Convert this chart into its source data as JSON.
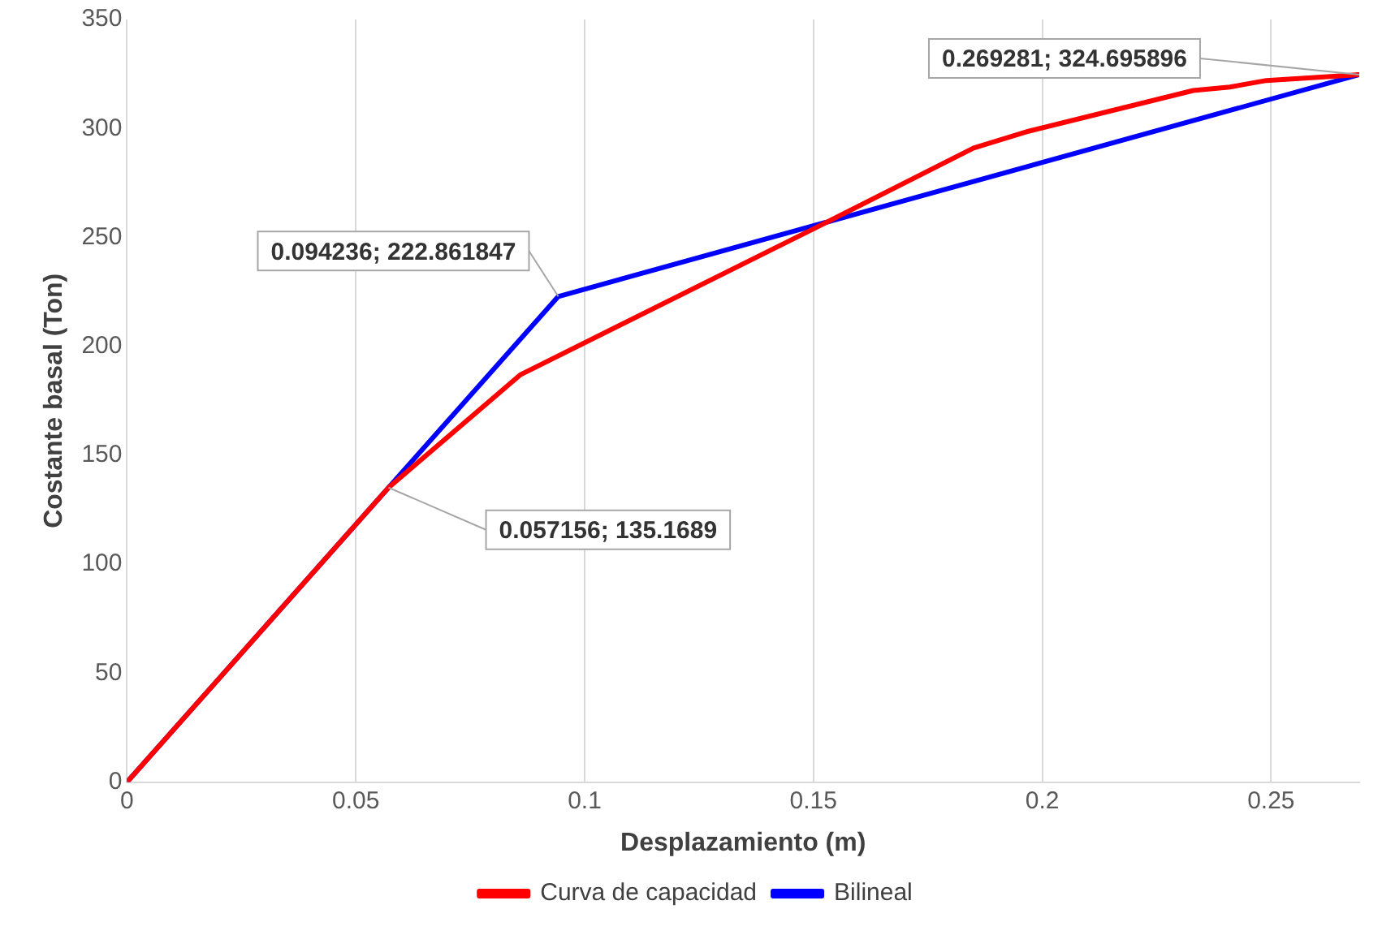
{
  "chart_data": {
    "type": "line",
    "xlabel": "Desplazamiento (m)",
    "ylabel": "Costante basal (Ton)",
    "xlim": [
      0,
      0.269281
    ],
    "xticks": [
      0,
      0.05,
      0.1,
      0.15,
      0.2,
      0.25
    ],
    "ylim": [
      0,
      350
    ],
    "yticks": [
      0,
      50,
      100,
      150,
      200,
      250,
      300,
      350
    ],
    "grid": "x",
    "legend": "bottom",
    "marker": "none",
    "line_style": "solid",
    "series": [
      {
        "name": "Curva de capacidad",
        "color": "#ff0000",
        "x": [
          0,
          0.057156,
          0.086,
          0.152,
          0.185,
          0.197,
          0.233,
          0.241,
          0.249,
          0.269281
        ],
        "values": [
          0,
          135.1689,
          187,
          256,
          291,
          298.7,
          317.4,
          319,
          322,
          324.695896
        ]
      },
      {
        "name": "Bilineal",
        "color": "#0000ff",
        "x": [
          0,
          0.057156,
          0.094236,
          0.269281
        ],
        "values": [
          0,
          135.1689,
          222.861847,
          324.695896
        ]
      }
    ],
    "annotations": [
      {
        "text": "0.057156; 135.1689",
        "x": 0.057156,
        "y": 135.1689
      },
      {
        "text": "0.094236; 222.861847",
        "x": 0.094236,
        "y": 222.861847
      },
      {
        "text": "0.269281; 324.695896",
        "x": 0.269281,
        "y": 324.695896
      }
    ]
  }
}
